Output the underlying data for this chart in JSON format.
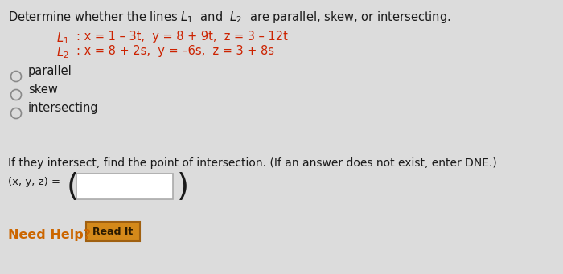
{
  "bg_color": "#dcdcdc",
  "text_color": "#1a1a1a",
  "red_color": "#cc2200",
  "need_help_color": "#cc6600",
  "read_it_bg": "#d4891a",
  "read_it_border": "#a06010",
  "read_it_text_color": "#2a1a00",
  "title_line": "Determine whether the lines $L_1$  and  $L_2$  are parallel, skew, or intersecting.",
  "L1_label": "$L_1$",
  "L1_eq": ": x = 1 – 3t,  y = 8 + 9t,  z = 3 – 12t",
  "L2_label": "$L_2$",
  "L2_eq": ": x = 8 + 2s,  y = –6s,  z = 3 + 8s",
  "options": [
    "parallel",
    "skew",
    "intersecting"
  ],
  "intersect_text": "If they intersect, find the point of intersection. (If an answer does not exist, enter DNE.)",
  "xyz_label": "(x, y, z) =",
  "need_help_text": "Need Help?",
  "read_it_text": "Read It",
  "fs_title": 10.5,
  "fs_body": 10.5,
  "fs_eq": 10.5,
  "fs_small": 9.5
}
